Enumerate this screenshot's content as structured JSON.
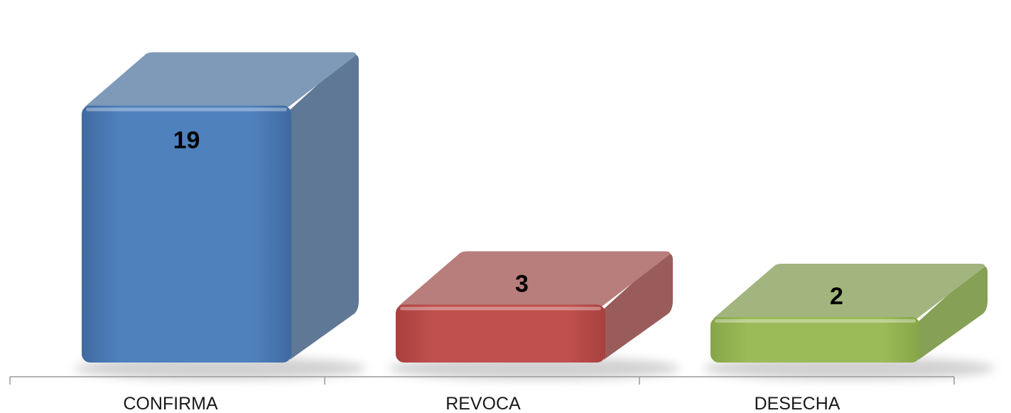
{
  "chart_data": {
    "type": "bar",
    "style": "3d-box",
    "categories": [
      "CONFIRMA",
      "REVOCA",
      "DESECHA"
    ],
    "values": [
      19,
      3,
      2
    ],
    "value_labels": [
      "19",
      "3",
      "2"
    ],
    "ylim": [
      0,
      19
    ],
    "grid": false,
    "legend": "none",
    "colors": [
      {
        "front": "#4f81bd",
        "frontDark": "#3f6aa0",
        "top": "#7f9ab8",
        "side": "#5f7895"
      },
      {
        "front": "#c0504d",
        "frontDark": "#a8403d",
        "top": "#b87e7c",
        "side": "#9a5c5a"
      },
      {
        "front": "#9bbb59",
        "frontDark": "#86a548",
        "top": "#a2b57e",
        "side": "#86a055"
      }
    ]
  }
}
